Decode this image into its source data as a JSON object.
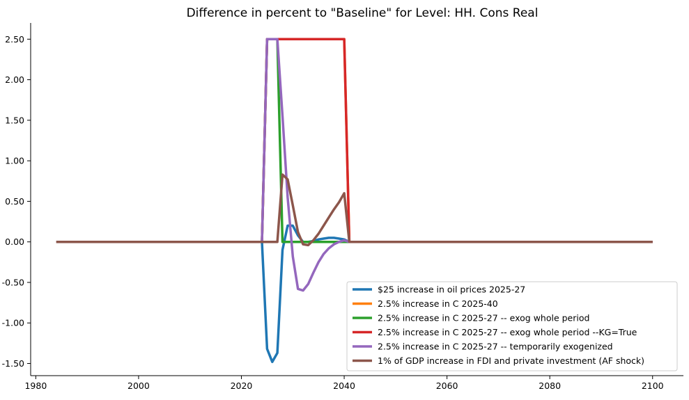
{
  "chart_data": {
    "type": "line",
    "title": "Difference in percent to \"Baseline\" for Level: HH. Cons Real",
    "xlabel": "",
    "ylabel": "",
    "xlim": [
      1979,
      2106
    ],
    "ylim": [
      -1.65,
      2.7
    ],
    "xticks": [
      1980,
      2000,
      2020,
      2040,
      2060,
      2080,
      2100
    ],
    "yticks": [
      -1.5,
      -1.0,
      -0.5,
      0.0,
      0.5,
      1.0,
      1.5,
      2.0,
      2.5
    ],
    "ytick_labels": [
      "-1.50",
      "-1.00",
      "-0.50",
      "0.00",
      "0.50",
      "1.00",
      "1.50",
      "2.00",
      "2.50"
    ],
    "grid": false,
    "legend_position": "lower-right",
    "series": [
      {
        "name": "$25 increase in oil prices 2025-27",
        "color": "#1f77b4",
        "points": [
          [
            1984,
            0
          ],
          [
            2024,
            0
          ],
          [
            2025,
            -1.32
          ],
          [
            2026,
            -1.48
          ],
          [
            2027,
            -1.37
          ],
          [
            2028,
            -0.1
          ],
          [
            2029,
            0.2
          ],
          [
            2030,
            0.2
          ],
          [
            2031,
            0.08
          ],
          [
            2032,
            0.0
          ],
          [
            2033,
            0.0
          ],
          [
            2034,
            0.01
          ],
          [
            2035,
            0.03
          ],
          [
            2036,
            0.04
          ],
          [
            2037,
            0.05
          ],
          [
            2038,
            0.05
          ],
          [
            2039,
            0.04
          ],
          [
            2040,
            0.03
          ],
          [
            2041,
            0
          ],
          [
            2100,
            0
          ]
        ]
      },
      {
        "name": "2.5% increase in C 2025-40",
        "color": "#ff7f0e",
        "points": [
          [
            1984,
            0
          ],
          [
            2024,
            0
          ],
          [
            2025,
            2.5
          ],
          [
            2040,
            2.5
          ],
          [
            2041,
            0
          ],
          [
            2100,
            0
          ]
        ]
      },
      {
        "name": "2.5% increase in C 2025-27 -- exog whole period",
        "color": "#2ca02c",
        "points": [
          [
            1984,
            0
          ],
          [
            2024,
            0
          ],
          [
            2025,
            2.5
          ],
          [
            2027,
            2.5
          ],
          [
            2028,
            0
          ],
          [
            2100,
            0
          ]
        ]
      },
      {
        "name": "2.5% increase in C 2025-27 -- exog whole period --KG=True",
        "color": "#d62728",
        "points": [
          [
            1984,
            0
          ],
          [
            2024,
            0
          ],
          [
            2025,
            2.5
          ],
          [
            2040,
            2.5
          ],
          [
            2041,
            0
          ],
          [
            2100,
            0
          ]
        ]
      },
      {
        "name": "2.5% increase in C 2025-27 -- temporarily exogenized",
        "color": "#9467bd",
        "points": [
          [
            1984,
            0
          ],
          [
            2024,
            0
          ],
          [
            2025,
            2.5
          ],
          [
            2027,
            2.5
          ],
          [
            2028,
            1.55
          ],
          [
            2029,
            0.55
          ],
          [
            2030,
            -0.18
          ],
          [
            2031,
            -0.58
          ],
          [
            2032,
            -0.6
          ],
          [
            2033,
            -0.52
          ],
          [
            2034,
            -0.38
          ],
          [
            2035,
            -0.25
          ],
          [
            2036,
            -0.15
          ],
          [
            2037,
            -0.08
          ],
          [
            2038,
            -0.03
          ],
          [
            2039,
            0.0
          ],
          [
            2040,
            0.02
          ],
          [
            2041,
            0
          ],
          [
            2100,
            0
          ]
        ]
      },
      {
        "name": "1% of GDP increase in FDI and private investment (AF shock)",
        "color": "#8c564b",
        "points": [
          [
            1984,
            0
          ],
          [
            2027,
            0
          ],
          [
            2028,
            0.83
          ],
          [
            2029,
            0.77
          ],
          [
            2030,
            0.45
          ],
          [
            2031,
            0.12
          ],
          [
            2032,
            -0.03
          ],
          [
            2033,
            -0.04
          ],
          [
            2034,
            0.02
          ],
          [
            2035,
            0.1
          ],
          [
            2036,
            0.2
          ],
          [
            2037,
            0.3
          ],
          [
            2038,
            0.4
          ],
          [
            2039,
            0.49
          ],
          [
            2040,
            0.6
          ],
          [
            2041,
            0
          ],
          [
            2100,
            0
          ]
        ]
      }
    ]
  }
}
